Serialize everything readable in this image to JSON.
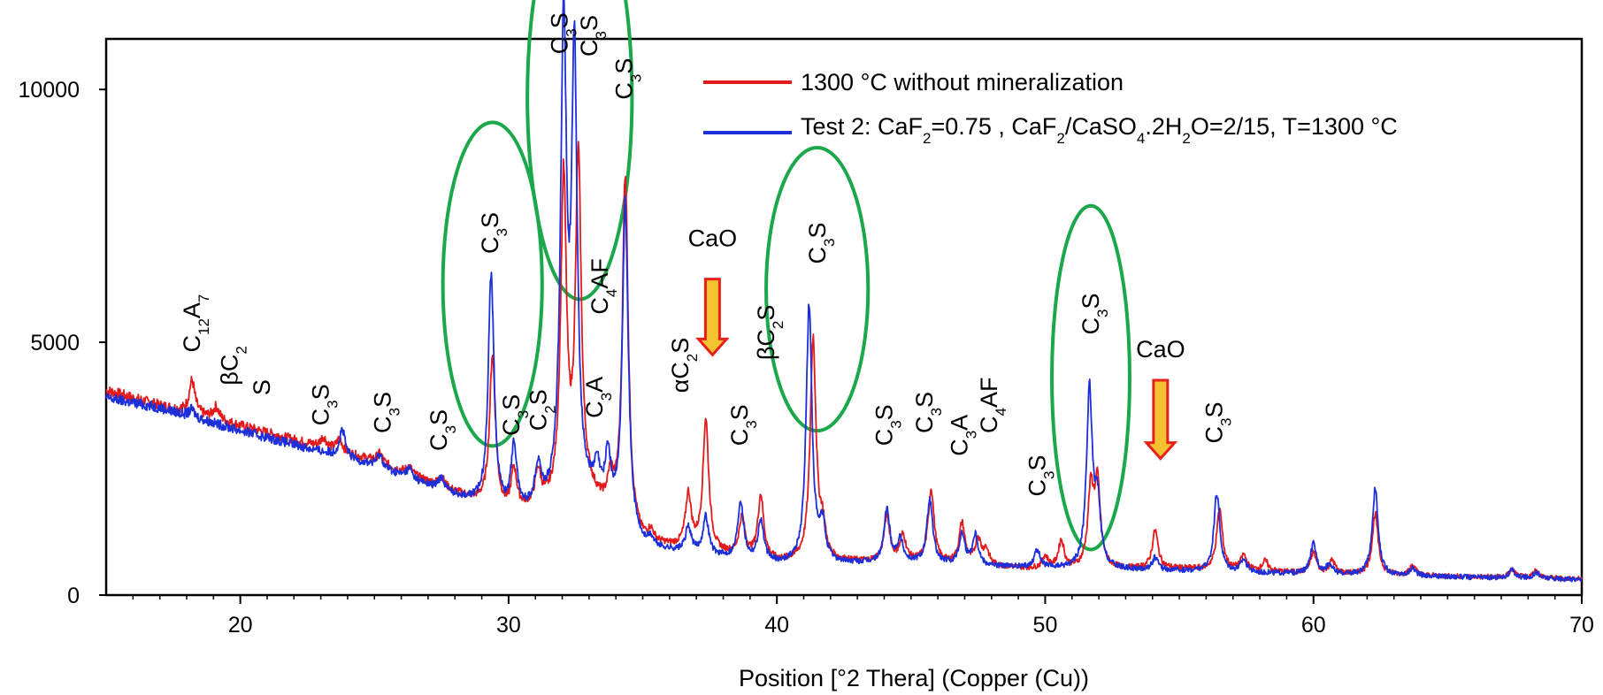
{
  "chart_data": {
    "type": "line",
    "xlabel": "Position [°2 Thera] (Copper (Cu))",
    "ylabel": "",
    "xlim": [
      15,
      70
    ],
    "ylim": [
      0,
      11000
    ],
    "x_ticks": [
      "20",
      "30",
      "40",
      "50",
      "60",
      "70"
    ],
    "y_ticks": [
      "0",
      "5000",
      "10000"
    ],
    "grid": false,
    "legend_position": "top-right",
    "series": [
      {
        "name": "1300 °C without mineralization",
        "color": "#e31a1c",
        "baseline": [
          [
            15,
            4050
          ],
          [
            17,
            3750
          ],
          [
            20,
            3350
          ],
          [
            25,
            2650
          ],
          [
            30,
            1600
          ],
          [
            33,
            1900
          ],
          [
            35,
            1000
          ],
          [
            40,
            650
          ],
          [
            45,
            650
          ],
          [
            50,
            500
          ],
          [
            55,
            520
          ],
          [
            60,
            430
          ],
          [
            65,
            370
          ],
          [
            70,
            320
          ]
        ],
        "peaks": [
          [
            18.2,
            650
          ],
          [
            19.1,
            250
          ],
          [
            23.1,
            200
          ],
          [
            23.7,
            250
          ],
          [
            25.2,
            180
          ],
          [
            26.3,
            150
          ],
          [
            27.5,
            200
          ],
          [
            29.4,
            3000
          ],
          [
            30.2,
            800
          ],
          [
            31.1,
            650
          ],
          [
            32.05,
            6300
          ],
          [
            32.6,
            6600
          ],
          [
            33.8,
            600
          ],
          [
            34.35,
            7000
          ],
          [
            35.3,
            200
          ],
          [
            36.7,
            1050
          ],
          [
            37.35,
            2600
          ],
          [
            38.7,
            750
          ],
          [
            39.4,
            1250
          ],
          [
            41.35,
            4400
          ],
          [
            41.7,
            600
          ],
          [
            44.1,
            900
          ],
          [
            44.7,
            500
          ],
          [
            45.75,
            1450
          ],
          [
            46.9,
            800
          ],
          [
            47.5,
            500
          ],
          [
            47.8,
            300
          ],
          [
            50.0,
            250
          ],
          [
            50.6,
            550
          ],
          [
            51.7,
            1500
          ],
          [
            51.95,
            1600
          ],
          [
            54.1,
            750
          ],
          [
            56.5,
            1200
          ],
          [
            57.4,
            300
          ],
          [
            58.2,
            200
          ],
          [
            60.0,
            400
          ],
          [
            60.7,
            250
          ],
          [
            62.3,
            1200
          ],
          [
            63.7,
            200
          ],
          [
            67.4,
            150
          ],
          [
            68.3,
            150
          ]
        ]
      },
      {
        "name": "Test 2: CaF2=0.75 , CaF2/CaSO4.2H2O=2/15, T=1300 °C",
        "color": "#1c2fd8",
        "baseline": [
          [
            15,
            3900
          ],
          [
            17,
            3700
          ],
          [
            20,
            3250
          ],
          [
            25,
            2550
          ],
          [
            30,
            1550
          ],
          [
            33,
            1800
          ],
          [
            35,
            900
          ],
          [
            40,
            600
          ],
          [
            45,
            620
          ],
          [
            50,
            520
          ],
          [
            55,
            470
          ],
          [
            60,
            410
          ],
          [
            65,
            360
          ],
          [
            70,
            310
          ]
        ],
        "peaks": [
          [
            18.2,
            150
          ],
          [
            23.8,
            550
          ],
          [
            25.2,
            250
          ],
          [
            26.3,
            200
          ],
          [
            27.5,
            250
          ],
          [
            29.35,
            4650
          ],
          [
            30.2,
            1300
          ],
          [
            31.1,
            800
          ],
          [
            32.05,
            9400
          ],
          [
            32.45,
            8500
          ],
          [
            33.3,
            650
          ],
          [
            33.7,
            1100
          ],
          [
            34.35,
            6500
          ],
          [
            35.3,
            150
          ],
          [
            36.7,
            500
          ],
          [
            37.35,
            750
          ],
          [
            38.65,
            1150
          ],
          [
            39.4,
            800
          ],
          [
            41.2,
            5100
          ],
          [
            41.7,
            700
          ],
          [
            44.1,
            1050
          ],
          [
            44.6,
            450
          ],
          [
            45.7,
            1250
          ],
          [
            46.9,
            600
          ],
          [
            47.4,
            600
          ],
          [
            49.7,
            350
          ],
          [
            51.65,
            3500
          ],
          [
            51.95,
            1200
          ],
          [
            54.1,
            250
          ],
          [
            56.4,
            1550
          ],
          [
            57.4,
            250
          ],
          [
            60.0,
            600
          ],
          [
            60.6,
            200
          ],
          [
            62.3,
            1700
          ],
          [
            63.7,
            150
          ],
          [
            67.4,
            150
          ],
          [
            68.3,
            120
          ]
        ]
      }
    ],
    "phase_labels": [
      {
        "main": "C",
        "sub": "12",
        "main2": "A",
        "sub2": "7",
        "x": 18.5,
        "y": 4800
      },
      {
        "main": "βC",
        "sub": "2",
        "main2": "",
        "sub2": "",
        "x": 19.9,
        "y": 4150
      },
      {
        "main": "S",
        "sub": "",
        "main2": "",
        "sub2": "",
        "x": 21.1,
        "y": 3950
      },
      {
        "main": "C",
        "sub": "3",
        "main2": "S",
        "sub2": "",
        "x": 23.3,
        "y": 3350
      },
      {
        "main": "C",
        "sub": "3",
        "main2": "S",
        "sub2": "",
        "x": 25.6,
        "y": 3200
      },
      {
        "main": "C",
        "sub": "3",
        "main2": "S",
        "sub2": "",
        "x": 27.7,
        "y": 2850
      },
      {
        "main": "C",
        "sub": "3",
        "main2": "S",
        "sub2": "",
        "x": 29.6,
        "y": 6750
      },
      {
        "main": "C",
        "sub": "3",
        "main2": "S",
        "sub2": "",
        "x": 30.4,
        "y": 3150
      },
      {
        "main": "C",
        "sub": "2",
        "main2": "S",
        "sub2": "",
        "x": 31.4,
        "y": 3250
      },
      {
        "main": "C",
        "sub": "3",
        "main2": "S",
        "sub2": "",
        "x": 32.2,
        "y": 10700
      },
      {
        "main": "C",
        "sub": "3",
        "main2": "S",
        "sub2": "",
        "x": 33.3,
        "y": 10650
      },
      {
        "main": "C",
        "sub": "3",
        "main2": "A",
        "sub2": "",
        "x": 33.5,
        "y": 3500
      },
      {
        "main": "C",
        "sub": "4",
        "main2": "AF",
        "sub2": "",
        "x": 33.7,
        "y": 5550
      },
      {
        "main": "C",
        "sub": "3",
        "main2": "S",
        "sub2": "",
        "x": 34.6,
        "y": 9800
      },
      {
        "main": "αC",
        "sub": "2",
        "main2": "S",
        "sub2": "",
        "x": 36.7,
        "y": 4000
      },
      {
        "main": "C",
        "sub": "3",
        "main2": "S",
        "sub2": "",
        "x": 38.9,
        "y": 2950
      },
      {
        "main": "βC",
        "sub": "2",
        "main2": "S",
        "sub2": "",
        "x": 39.9,
        "y": 4650
      },
      {
        "main": "C",
        "sub": "3",
        "main2": "S",
        "sub2": "",
        "x": 41.8,
        "y": 6550
      },
      {
        "main": "C",
        "sub": "3",
        "main2": "S",
        "sub2": "",
        "x": 44.3,
        "y": 2950
      },
      {
        "main": "C",
        "sub": "3",
        "main2": "S",
        "sub2": "",
        "x": 45.8,
        "y": 3200
      },
      {
        "main": "C",
        "sub": "3",
        "main2": "A",
        "sub2": "",
        "x": 47.1,
        "y": 2750
      },
      {
        "main": "C",
        "sub": "4",
        "main2": "AF",
        "sub2": "",
        "x": 48.2,
        "y": 3200
      },
      {
        "main": "C",
        "sub": "3",
        "main2": "S",
        "sub2": "",
        "x": 50.0,
        "y": 1950
      },
      {
        "main": "C",
        "sub": "3",
        "main2": "S",
        "sub2": "",
        "x": 52.0,
        "y": 5150
      },
      {
        "main": "C",
        "sub": "3",
        "main2": "S",
        "sub2": "",
        "x": 56.6,
        "y": 3000
      }
    ],
    "annotations": [
      {
        "text": "CaO",
        "x": 37.6,
        "y": 6900
      },
      {
        "text": "CaO",
        "x": 54.3,
        "y": 4700
      }
    ],
    "arrows": [
      {
        "x": 37.6,
        "y_top": 6250,
        "y_bottom": 4750
      },
      {
        "x": 54.3,
        "y_top": 4250,
        "y_bottom": 2700
      }
    ],
    "circles": [
      {
        "x": 29.4,
        "y": 6150,
        "rx": 1.85,
        "ry": 3200
      },
      {
        "x": 32.65,
        "y": 9850,
        "rx": 1.95,
        "ry": 4000
      },
      {
        "x": 41.5,
        "y": 6050,
        "rx": 1.9,
        "ry": 2800
      },
      {
        "x": 51.7,
        "y": 4300,
        "rx": 1.45,
        "ry": 3400
      }
    ],
    "circle_color": "#1aa84b",
    "arrow_colors": {
      "fill": "#f2c230",
      "stroke": "#e8201c"
    }
  }
}
